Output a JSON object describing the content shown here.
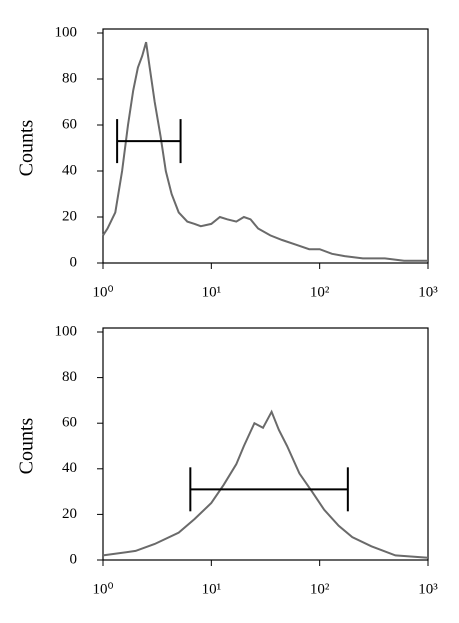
{
  "chart_data": [
    {
      "type": "line",
      "ylabel": "Counts",
      "log_x": true,
      "color": "#6a6a6a",
      "x": [
        1.0,
        1.1,
        1.3,
        1.5,
        1.7,
        1.9,
        2.1,
        2.3,
        2.5,
        2.7,
        3.0,
        3.4,
        3.8,
        4.3,
        5,
        6,
        7,
        8,
        10,
        12,
        14,
        17,
        20,
        23,
        27,
        35,
        45,
        60,
        80,
        100,
        130,
        170,
        250,
        400,
        600,
        1000
      ],
      "values": [
        12,
        15,
        22,
        40,
        60,
        75,
        85,
        90,
        96,
        85,
        70,
        55,
        40,
        30,
        22,
        18,
        17,
        16,
        17,
        20,
        19,
        18,
        20,
        19,
        15,
        12,
        10,
        8,
        6,
        6,
        4,
        3,
        2,
        2,
        1,
        1
      ],
      "xlim": [
        1,
        1000
      ],
      "ylim": [
        0,
        100
      ],
      "xticks": [
        {
          "value": 1,
          "label": "10⁰"
        },
        {
          "value": 10,
          "label": "10¹"
        },
        {
          "value": 100,
          "label": "10²"
        },
        {
          "value": 1000,
          "label": "10³"
        }
      ],
      "yticks": [
        0,
        20,
        40,
        60,
        80,
        100
      ],
      "gate": {
        "x": [
          1.35,
          5.2
        ],
        "y": 53
      }
    },
    {
      "type": "line",
      "ylabel": "Counts",
      "log_x": true,
      "color": "#6a6a6a",
      "x": [
        1,
        2,
        3,
        5,
        7,
        10,
        13,
        17,
        20,
        25,
        30,
        36,
        42,
        50,
        65,
        85,
        110,
        150,
        200,
        300,
        500,
        1000
      ],
      "values": [
        2,
        4,
        7,
        12,
        18,
        25,
        33,
        42,
        50,
        60,
        58,
        65,
        57,
        50,
        38,
        30,
        22,
        15,
        10,
        6,
        2,
        1
      ],
      "xlim": [
        1,
        1000
      ],
      "ylim": [
        0,
        100
      ],
      "xticks": [
        {
          "value": 1,
          "label": "10⁰"
        },
        {
          "value": 10,
          "label": "10¹"
        },
        {
          "value": 100,
          "label": "10²"
        },
        {
          "value": 1000,
          "label": "10³"
        }
      ],
      "yticks": [
        0,
        20,
        40,
        60,
        80,
        100
      ],
      "gate": {
        "x": [
          6.4,
          182
        ],
        "y": 31
      }
    }
  ]
}
